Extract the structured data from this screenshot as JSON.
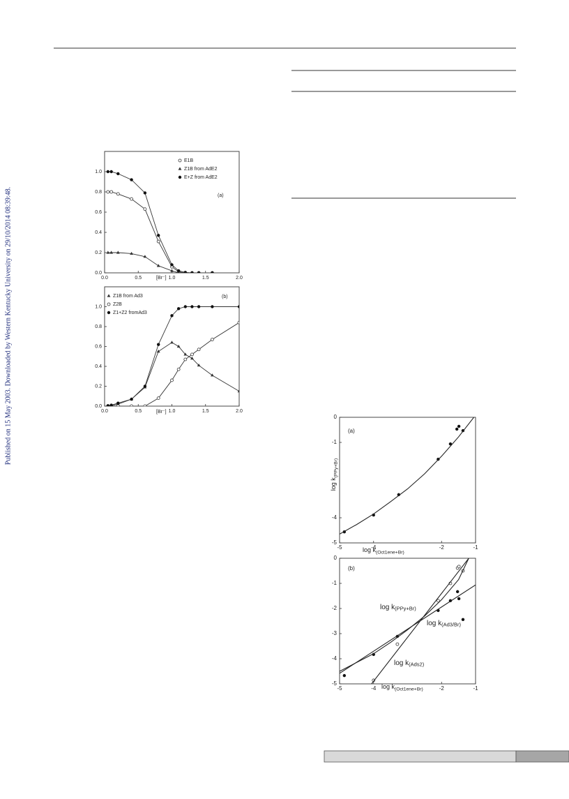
{
  "sidebar_text": "Published on 15 May 2003. Downloaded by Western Kentucky University on 29/10/2014 08:39:48.",
  "chart_data": [
    {
      "type": "line",
      "panel_label": "(a)",
      "xlabel": "[Br⁻]",
      "legend": "upper right",
      "xlim": [
        0,
        2
      ],
      "xticks": [
        {
          "value": 0,
          "label": "0.0"
        },
        0.5,
        {
          "value": 1,
          "label": "1.0"
        },
        1.5,
        {
          "value": 2,
          "label": "2.0"
        }
      ],
      "ylim": [
        0,
        1.2
      ],
      "yticks": [
        {
          "value": 0,
          "label": "0.0"
        },
        0.2,
        0.4,
        0.6,
        0.8,
        {
          "value": 1,
          "label": "1.0"
        }
      ],
      "x": [
        0.05,
        0.1,
        0.2,
        0.4,
        0.6,
        0.8,
        1.0,
        1.1,
        1.2,
        1.3,
        1.4,
        1.6
      ],
      "series": [
        {
          "name": "E1B",
          "marker": "open-circle",
          "values": [
            0.8,
            0.8,
            0.78,
            0.73,
            0.63,
            0.31,
            0.06,
            0.01,
            0,
            0,
            0,
            0
          ]
        },
        {
          "name": "Z1B from AdE2",
          "marker": "triangle",
          "values": [
            0.2,
            0.2,
            0.2,
            0.19,
            0.16,
            0.07,
            0.02,
            0,
            0,
            0,
            0,
            0
          ]
        },
        {
          "name": "E+Z from AdE2",
          "marker": "filled-circle",
          "values": [
            1.0,
            1.0,
            0.98,
            0.92,
            0.79,
            0.37,
            0.08,
            0.02,
            0.005,
            0,
            0,
            0
          ]
        }
      ]
    },
    {
      "type": "line",
      "panel_label": "(b)",
      "xlabel": "[Br⁻]",
      "legend": "upper left",
      "xlim": [
        0,
        2
      ],
      "xticks": [
        {
          "value": 0,
          "label": "0.0"
        },
        0.5,
        {
          "value": 1,
          "label": "1.0"
        },
        1.5,
        {
          "value": 2,
          "label": "2.0"
        }
      ],
      "ylim": [
        0,
        1.2
      ],
      "yticks": [
        {
          "value": 0,
          "label": "0.0"
        },
        0.2,
        0.4,
        0.6,
        0.8,
        {
          "value": 1,
          "label": "1.0"
        }
      ],
      "x": [
        0.05,
        0.1,
        0.2,
        0.4,
        0.6,
        0.8,
        1.0,
        1.1,
        1.2,
        1.3,
        1.4,
        1.6,
        2.0
      ],
      "series": [
        {
          "name": "Z1B from Ad3",
          "marker": "triangle",
          "values": [
            0,
            0.005,
            0.02,
            0.07,
            0.19,
            0.55,
            0.64,
            0.6,
            0.52,
            0.48,
            0.41,
            0.31,
            0.15
          ]
        },
        {
          "name": "Z2B",
          "marker": "open-circle",
          "values": [
            0,
            0,
            0,
            0,
            0,
            0.08,
            0.26,
            0.37,
            0.47,
            0.52,
            0.57,
            0.67,
            0.84
          ]
        },
        {
          "name": "Z1+Z2 fromAd3",
          "marker": "filled-circle",
          "values": [
            0.005,
            0.01,
            0.03,
            0.07,
            0.2,
            0.62,
            0.91,
            0.98,
            1.0,
            1.0,
            1.0,
            1.0,
            1.0
          ]
        }
      ]
    },
    {
      "type": "scatter",
      "panel_label": "(a)",
      "xlabel": "log k",
      "xlabel_sub": "(Oct1ene+Br)",
      "ylabel": "log k",
      "ylabel_sub": "(PPy+Br)",
      "xlim": [
        -5,
        -1
      ],
      "xticks": [
        -5,
        -4,
        -2,
        -1
      ],
      "ylim": [
        -5,
        0
      ],
      "yticks": [
        -5,
        -4,
        -1,
        0
      ],
      "series": [
        {
          "marker": "filled-circle",
          "x": [
            -4.86,
            -4.0,
            -3.26,
            -2.1,
            -1.74,
            -1.55,
            -1.49,
            -1.37
          ],
          "values": [
            -4.56,
            -3.89,
            -3.08,
            -1.67,
            -1.06,
            -0.47,
            -0.36,
            -0.53
          ]
        },
        {
          "style": "line",
          "x": [
            -5,
            -4.5,
            -4,
            -3.5,
            -3,
            -2.5,
            -2,
            -1.5,
            -1.05
          ],
          "values": [
            -4.65,
            -4.27,
            -3.85,
            -3.36,
            -2.85,
            -2.25,
            -1.55,
            -0.78,
            0
          ]
        }
      ]
    },
    {
      "type": "scatter",
      "panel_label": "(b)",
      "xlabel": "log k",
      "xlabel_sub": "(Oct1ene+Br)",
      "xlim": [
        -5,
        -1
      ],
      "xticks": [
        -5,
        -4,
        -2,
        -1
      ],
      "ylim": [
        -5,
        0
      ],
      "yticks": [
        -5,
        -4,
        -3,
        -2,
        -1,
        0
      ],
      "annotations": [
        {
          "text": "log k",
          "sub": "(PPy+Br)"
        },
        {
          "text": "log k",
          "sub": "(Ad3/Br)"
        },
        {
          "text": "log k",
          "sub": "(Ads2)"
        }
      ],
      "series": [
        {
          "marker": "filled-circle",
          "x": [
            -4.86,
            -4.0,
            -3.3,
            -2.1,
            -1.74,
            -1.53,
            -1.49,
            -1.37
          ],
          "values": [
            -4.67,
            -3.83,
            -3.11,
            -2.08,
            -1.69,
            -1.33,
            -1.61,
            -2.44
          ]
        },
        {
          "marker": "open-circle",
          "x": [
            -4.0,
            -3.3,
            -2.1,
            -1.74,
            -1.53,
            -1.49,
            -1.37
          ],
          "values": [
            -4.86,
            -3.42,
            -1.69,
            -1.0,
            -0.39,
            -0.33,
            -0.5
          ]
        },
        {
          "style": "line",
          "x": [
            -5,
            -4.5,
            -4,
            -3.5,
            -3,
            -2.5,
            -2,
            -1.5,
            -1.2
          ],
          "values": [
            -4.5,
            -4.15,
            -3.8,
            -3.35,
            -2.85,
            -2.3,
            -1.65,
            -0.85,
            0
          ]
        },
        {
          "style": "line",
          "x": [
            -5,
            -1
          ],
          "values": [
            -4.58,
            -1.06
          ]
        },
        {
          "style": "line",
          "x": [
            -4.06,
            -1.2
          ],
          "values": [
            -5,
            0
          ]
        }
      ]
    }
  ]
}
